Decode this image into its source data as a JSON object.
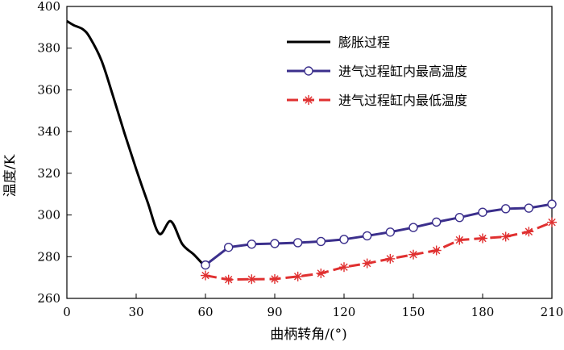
{
  "chart_data": {
    "type": "line",
    "xlabel": "曲柄转角/(°)",
    "ylabel": "温度/K",
    "xlim": [
      0,
      210
    ],
    "ylim": [
      260,
      400
    ],
    "xticks": [
      0,
      30,
      60,
      90,
      120,
      150,
      180,
      210
    ],
    "yticks": [
      260,
      280,
      300,
      320,
      340,
      360,
      380,
      400
    ],
    "grid": false,
    "legend_position": "top-right",
    "series": [
      {
        "name": "膨胀过程",
        "color": "#000000",
        "marker": "none",
        "x": [
          0,
          3,
          7,
          10,
          15,
          20,
          25,
          30,
          35,
          40,
          45,
          50,
          55,
          60
        ],
        "y": [
          393,
          391,
          389,
          385,
          374,
          357,
          339,
          322,
          306,
          291,
          297,
          286,
          281,
          275
        ]
      },
      {
        "name": "进气过程缸内最高温度",
        "color": "#3b2f8c",
        "marker": "circle",
        "x": [
          60,
          70,
          80,
          90,
          100,
          110,
          120,
          130,
          140,
          150,
          160,
          170,
          180,
          190,
          200,
          210
        ],
        "y": [
          276,
          284.5,
          286,
          286.3,
          286.7,
          287.3,
          288.3,
          290,
          291.8,
          294,
          296.6,
          298.8,
          301.3,
          303,
          303.3,
          305.2
        ]
      },
      {
        "name": "进气过程缸内最低温度",
        "color": "#e03030",
        "marker": "asterisk",
        "x": [
          60,
          70,
          80,
          90,
          100,
          110,
          120,
          130,
          140,
          150,
          160,
          170,
          180,
          190,
          200,
          210
        ],
        "y": [
          271,
          269,
          269.2,
          269.3,
          270.5,
          272,
          275,
          276.8,
          279,
          281,
          283,
          288,
          288.8,
          289.6,
          292,
          296.5
        ]
      }
    ]
  }
}
